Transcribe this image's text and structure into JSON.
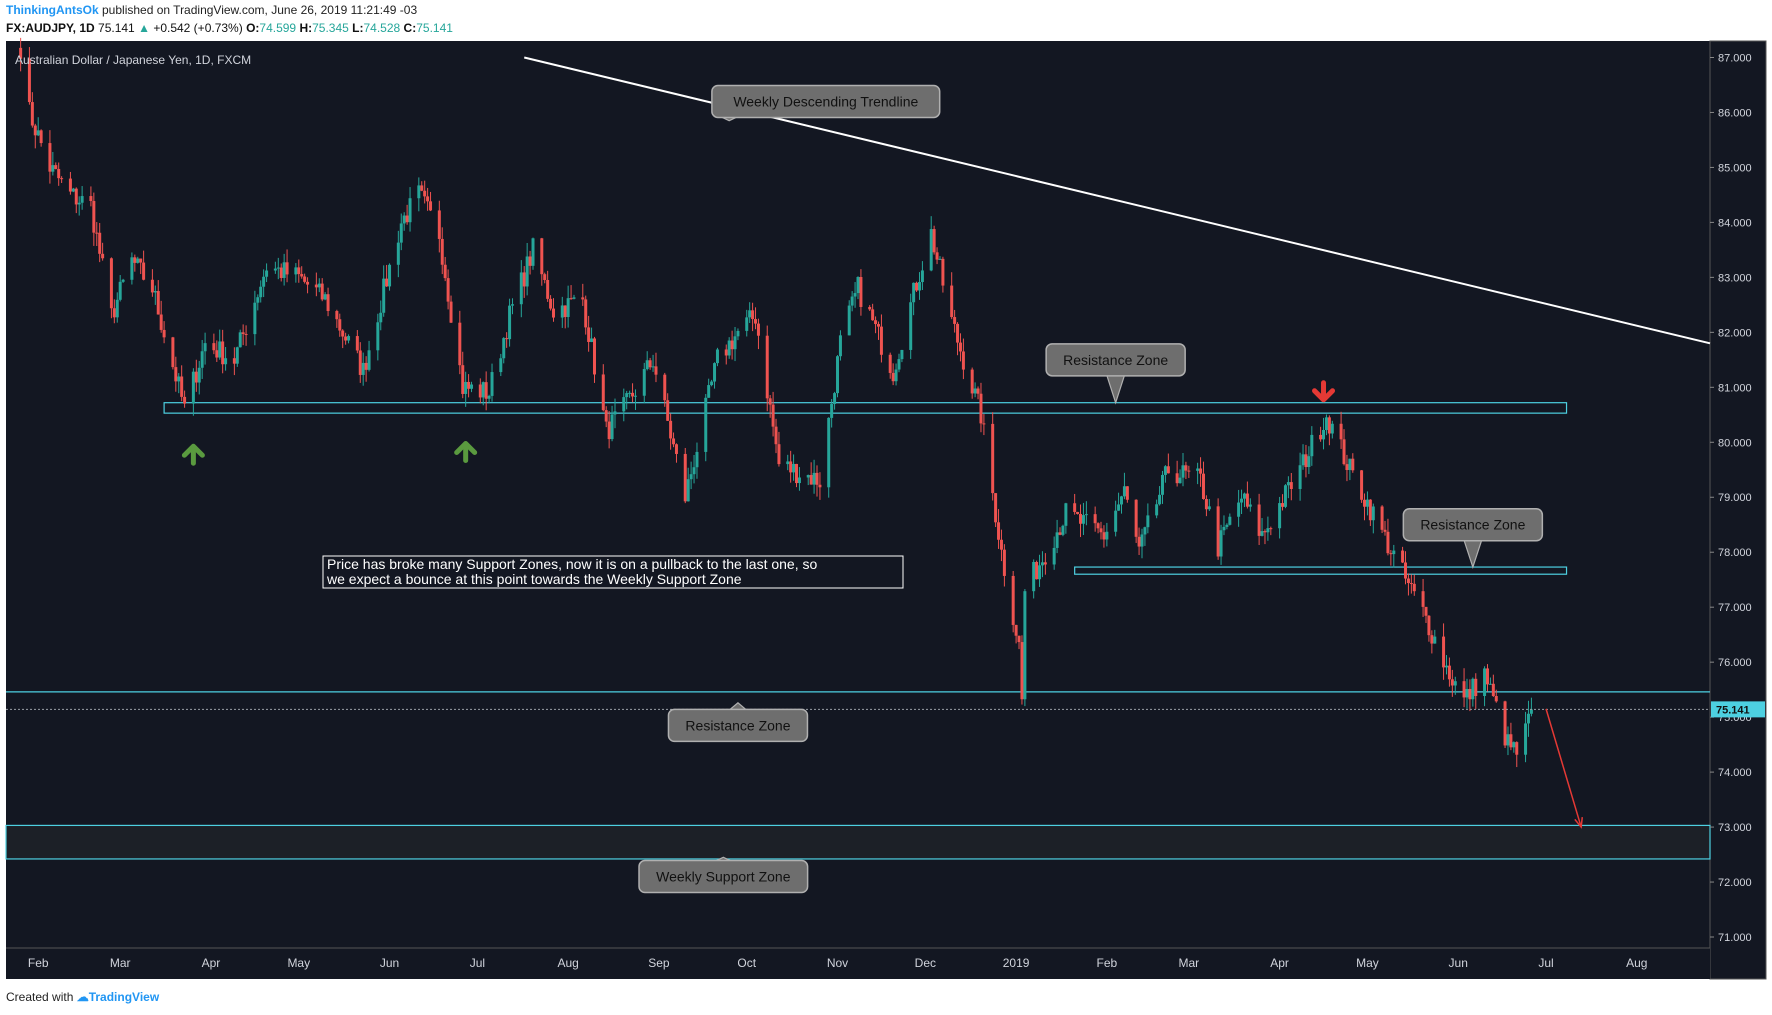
{
  "header": {
    "user": "ThinkingAntsOk",
    "published": " published on TradingView.com, June 26, 2019 11:21:49 -03",
    "symbol": "FX:AUDJPY, 1D",
    "last": "75.141",
    "change": "+0.542 (+0.73%)",
    "o_label": "O:",
    "o": "74.599",
    "h_label": "H:",
    "h": "75.345",
    "l_label": "L:",
    "l": "74.528",
    "c_label": "C:",
    "c": "75.141"
  },
  "footer": {
    "created_with": "Created with",
    "brand": "TradingView"
  },
  "colors": {
    "background": "#131722",
    "up": "#26a69a",
    "down": "#ef5350",
    "zone": "#4dd0e1",
    "trendline": "#ffffff",
    "green_arrow": "#5a9a3f",
    "red_arrow": "#e53935"
  },
  "chart_data": {
    "type": "candlestick",
    "title": "Australian Dollar / Japanese Yen, 1D, FXCM",
    "ylim": [
      70.8,
      87.3
    ],
    "xlim": [
      "2018-01-21",
      "2019-08-26"
    ],
    "y_ticks": [
      "71.000",
      "72.000",
      "73.000",
      "74.000",
      "75.000",
      "76.000",
      "77.000",
      "78.000",
      "79.000",
      "80.000",
      "81.000",
      "82.000",
      "83.000",
      "84.000",
      "85.000",
      "86.000",
      "87.000"
    ],
    "x_ticks": [
      {
        "label": "Feb",
        "date": "2018-02-01"
      },
      {
        "label": "Mar",
        "date": "2018-03-01"
      },
      {
        "label": "Apr",
        "date": "2018-04-01"
      },
      {
        "label": "May",
        "date": "2018-05-01"
      },
      {
        "label": "Jun",
        "date": "2018-06-01"
      },
      {
        "label": "Jul",
        "date": "2018-07-01"
      },
      {
        "label": "Aug",
        "date": "2018-08-01"
      },
      {
        "label": "Sep",
        "date": "2018-09-01"
      },
      {
        "label": "Oct",
        "date": "2018-10-01"
      },
      {
        "label": "Nov",
        "date": "2018-11-01"
      },
      {
        "label": "Dec",
        "date": "2018-12-01"
      },
      {
        "label": "2019",
        "date": "2019-01-01"
      },
      {
        "label": "Feb",
        "date": "2019-02-01"
      },
      {
        "label": "Mar",
        "date": "2019-03-01"
      },
      {
        "label": "Apr",
        "date": "2019-04-01"
      },
      {
        "label": "May",
        "date": "2019-05-01"
      },
      {
        "label": "Jun",
        "date": "2019-06-01"
      },
      {
        "label": "Jul",
        "date": "2019-07-01"
      },
      {
        "label": "Aug",
        "date": "2019-08-01"
      }
    ],
    "price_path": [
      [
        "2018-01-26",
        87.2
      ],
      [
        "2018-01-29",
        86.0
      ],
      [
        "2018-02-05",
        85.0
      ],
      [
        "2018-02-12",
        84.5
      ],
      [
        "2018-02-19",
        84.3
      ],
      [
        "2018-02-26",
        82.3
      ],
      [
        "2018-03-05",
        83.3
      ],
      [
        "2018-03-12",
        82.8
      ],
      [
        "2018-03-23",
        80.6
      ],
      [
        "2018-03-30",
        81.8
      ],
      [
        "2018-04-09",
        81.5
      ],
      [
        "2018-04-20",
        83.2
      ],
      [
        "2018-05-01",
        83.0
      ],
      [
        "2018-05-10",
        82.6
      ],
      [
        "2018-05-23",
        81.3
      ],
      [
        "2018-06-05",
        84.0
      ],
      [
        "2018-06-11",
        84.5
      ],
      [
        "2018-06-18",
        83.8
      ],
      [
        "2018-06-26",
        81.0
      ],
      [
        "2018-07-05",
        80.9
      ],
      [
        "2018-07-12",
        82.3
      ],
      [
        "2018-07-20",
        83.5
      ],
      [
        "2018-07-27",
        82.4
      ],
      [
        "2018-08-06",
        82.6
      ],
      [
        "2018-08-14",
        80.2
      ],
      [
        "2018-08-20",
        80.6
      ],
      [
        "2018-08-30",
        81.5
      ],
      [
        "2018-09-10",
        79.0
      ],
      [
        "2018-09-21",
        81.5
      ],
      [
        "2018-09-28",
        82.0
      ],
      [
        "2018-10-04",
        82.3
      ],
      [
        "2018-10-12",
        79.6
      ],
      [
        "2018-10-26",
        79.3
      ],
      [
        "2018-11-02",
        81.8
      ],
      [
        "2018-11-08",
        82.8
      ],
      [
        "2018-11-20",
        81.3
      ],
      [
        "2018-11-28",
        82.9
      ],
      [
        "2018-12-03",
        83.8
      ],
      [
        "2018-12-10",
        82.2
      ],
      [
        "2018-12-20",
        80.5
      ],
      [
        "2018-12-27",
        78.0
      ],
      [
        "2019-01-02",
        76.3
      ],
      [
        "2019-01-03",
        75.3
      ],
      [
        "2019-01-04",
        77.3
      ],
      [
        "2019-01-18",
        78.7
      ],
      [
        "2019-01-31",
        78.3
      ],
      [
        "2019-02-07",
        79.1
      ],
      [
        "2019-02-12",
        78.0
      ],
      [
        "2019-02-22",
        79.5
      ],
      [
        "2019-03-05",
        79.3
      ],
      [
        "2019-03-11",
        78.1
      ],
      [
        "2019-03-19",
        79.0
      ],
      [
        "2019-03-26",
        78.3
      ],
      [
        "2019-04-08",
        79.5
      ],
      [
        "2019-04-17",
        80.5
      ],
      [
        "2019-04-25",
        79.5
      ],
      [
        "2019-05-02",
        78.8
      ],
      [
        "2019-05-14",
        77.5
      ],
      [
        "2019-05-21",
        76.8
      ],
      [
        "2019-05-28",
        75.9
      ],
      [
        "2019-06-03",
        75.3
      ],
      [
        "2019-06-10",
        75.8
      ],
      [
        "2019-06-18",
        74.5
      ],
      [
        "2019-06-22",
        74.3
      ],
      [
        "2019-06-26",
        75.141
      ]
    ],
    "last_price": "75.141",
    "zones": [
      {
        "name": "upper-zone",
        "top": 80.72,
        "bottom": 80.53,
        "from": "2018-03-16",
        "to": "2019-07-08"
      },
      {
        "name": "middle-zone",
        "top": 77.73,
        "bottom": 77.6,
        "from": "2019-01-21",
        "to": "2019-07-08"
      },
      {
        "name": "lower-zone",
        "top": 75.46,
        "bottom": 75.46,
        "from": "2018-01-21",
        "to": "2019-08-26"
      },
      {
        "name": "weekly-support-zone",
        "top": 73.03,
        "bottom": 72.42,
        "from": "2018-01-21",
        "to": "2019-08-26"
      }
    ],
    "trendline": {
      "p1": [
        "2018-07-17",
        87.0
      ],
      "p2": [
        "2019-08-26",
        81.8
      ]
    },
    "projection": {
      "from": [
        "2019-07-01",
        75.15
      ],
      "to": [
        "2019-07-13",
        73.0
      ]
    },
    "markers": [
      {
        "type": "up-arrow",
        "date": "2018-03-26",
        "price": 79.8
      },
      {
        "type": "up-arrow",
        "date": "2018-06-27",
        "price": 79.85
      },
      {
        "type": "down-arrow",
        "date": "2019-04-16",
        "price": 80.9
      }
    ],
    "annotations": [
      {
        "id": "trendline-callout",
        "text": "Weekly Descending Trendline",
        "date": "2018-10-28",
        "price": 86.2,
        "pointer": "down",
        "tip": [
          "2018-09-25",
          85.85
        ]
      },
      {
        "id": "resistance-callout-1",
        "text": "Resistance Zone",
        "date": "2019-02-04",
        "price": 81.5,
        "pointer": "down",
        "tip": [
          "2019-02-04",
          80.72
        ]
      },
      {
        "id": "resistance-callout-2",
        "text": "Resistance Zone",
        "date": "2019-06-06",
        "price": 78.5,
        "pointer": "down",
        "tip": [
          "2019-06-06",
          77.73
        ]
      },
      {
        "id": "resistance-callout-3",
        "text": "Resistance Zone",
        "date": "2018-09-28",
        "price": 74.85,
        "pointer": "up",
        "tip": [
          "2018-09-28",
          75.26
        ]
      },
      {
        "id": "weekly-support-callout",
        "text": "Weekly Support Zone",
        "date": "2018-09-23",
        "price": 72.1,
        "pointer": "up",
        "tip": [
          "2018-09-23",
          72.45
        ]
      }
    ],
    "note_lines": [
      "Price has broke many Support Zones, now it is on a pullback to the last one, so",
      "we expect a bounce at this point towards the Weekly Support Zone"
    ]
  }
}
